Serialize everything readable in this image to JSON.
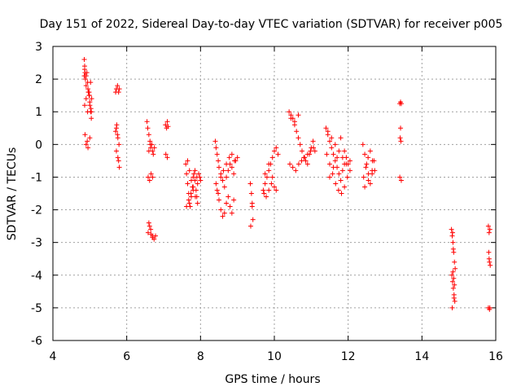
{
  "chart_data": {
    "type": "scatter",
    "title": "Day 151 of 2022, Sidereal Day-to-day VTEC variation (SDTVAR) for receiver p005",
    "xlabel": "GPS time / hours",
    "ylabel": "SDTVAR / TECUs",
    "xlim": [
      4,
      16
    ],
    "ylim": [
      -6,
      3
    ],
    "xticks": [
      "4",
      "6",
      "8",
      "10",
      "12",
      "14",
      "16"
    ],
    "yticks": [
      "-6",
      "-5",
      "-4",
      "-3",
      "-2",
      "-1",
      "0",
      "1",
      "2",
      "3"
    ],
    "grid": true,
    "marker": "+",
    "color": "#ff0000",
    "series": [
      {
        "name": "SDTVAR",
        "x": [
          4.85,
          4.86,
          4.87,
          4.88,
          4.9,
          4.92,
          4.94,
          4.96,
          4.98,
          5.0,
          5.02,
          5.04,
          5.05,
          4.86,
          4.9,
          4.94,
          4.98,
          5.02,
          4.85,
          4.9,
          4.95,
          5.0,
          4.87,
          4.93,
          4.99,
          5.03,
          4.86,
          4.9,
          4.95,
          5.0,
          5.04,
          5.7,
          5.72,
          5.75,
          5.78,
          5.8,
          5.7,
          5.73,
          5.76,
          5.79,
          5.72,
          5.76,
          5.8,
          5.75,
          5.72,
          5.78,
          6.55,
          6.57,
          6.6,
          6.63,
          6.65,
          6.68,
          6.7,
          6.72,
          6.75,
          6.58,
          6.62,
          6.66,
          6.7,
          6.6,
          6.65,
          6.7,
          6.58,
          6.62,
          6.66,
          6.7,
          6.74,
          6.78,
          6.6,
          6.64,
          7.05,
          7.08,
          7.1,
          7.12,
          7.06,
          7.1,
          7.6,
          7.62,
          7.65,
          7.68,
          7.7,
          7.72,
          7.75,
          7.78,
          7.8,
          7.82,
          7.85,
          7.88,
          7.9,
          7.92,
          7.95,
          7.98,
          8.0,
          7.65,
          7.7,
          7.75,
          7.8,
          7.85,
          7.9,
          7.62,
          7.68,
          7.74,
          7.8,
          7.86,
          7.92,
          8.4,
          8.42,
          8.45,
          8.48,
          8.5,
          8.55,
          8.6,
          8.65,
          8.7,
          8.75,
          8.8,
          8.85,
          8.9,
          8.95,
          9.0,
          8.45,
          8.5,
          8.55,
          8.6,
          8.65,
          8.7,
          8.75,
          8.8,
          8.85,
          8.9,
          8.42,
          8.48,
          8.55,
          8.62,
          8.7,
          8.78,
          8.85,
          8.92,
          9.35,
          9.38,
          9.4,
          9.42,
          9.36,
          9.4,
          9.7,
          9.75,
          9.8,
          9.85,
          9.9,
          9.95,
          10.0,
          10.05,
          10.1,
          9.72,
          9.78,
          9.85,
          9.92,
          10.0,
          9.75,
          9.85,
          9.95,
          10.05,
          10.4,
          10.45,
          10.5,
          10.55,
          10.6,
          10.65,
          10.7,
          10.75,
          10.8,
          10.85,
          10.9,
          10.95,
          11.0,
          11.05,
          11.1,
          10.42,
          10.5,
          10.58,
          10.66,
          10.74,
          10.82,
          10.9,
          10.98,
          11.06,
          10.45,
          10.55,
          10.65,
          11.4,
          11.45,
          11.5,
          11.55,
          11.6,
          11.65,
          11.7,
          11.75,
          11.8,
          11.85,
          11.9,
          11.95,
          12.0,
          12.05,
          11.42,
          11.5,
          11.58,
          11.66,
          11.74,
          11.82,
          11.9,
          11.98,
          11.45,
          11.55,
          11.65,
          11.75,
          11.85,
          11.95,
          12.05,
          11.5,
          11.6,
          11.7,
          11.8,
          11.9,
          12.4,
          12.45,
          12.5,
          12.55,
          12.6,
          12.65,
          12.7,
          12.42,
          12.48,
          12.54,
          12.6,
          12.66,
          12.72,
          12.45,
          12.55,
          12.65,
          13.4,
          13.42,
          13.44,
          13.41,
          13.43,
          13.42,
          13.4,
          13.44,
          14.8,
          14.82,
          14.84,
          14.86,
          14.88,
          14.9,
          14.81,
          14.83,
          14.85,
          14.87,
          14.89,
          14.82,
          14.84,
          14.86,
          14.88,
          14.85,
          14.83,
          14.87,
          15.8,
          15.82,
          15.84,
          15.81,
          15.83,
          15.85,
          15.82,
          15.84,
          15.8,
          15.83
        ],
        "y": [
          2.6,
          2.4,
          2.2,
          2.0,
          1.8,
          2.2,
          1.9,
          1.6,
          1.5,
          1.2,
          1.0,
          0.8,
          1.4,
          1.2,
          1.4,
          1.0,
          1.6,
          1.9,
          2.1,
          0.0,
          -0.1,
          0.2,
          0.3,
          0.1,
          1.5,
          1.1,
          2.3,
          2.1,
          1.7,
          1.3,
          1.0,
          1.6,
          1.7,
          1.8,
          1.6,
          1.7,
          0.4,
          0.6,
          0.2,
          0.0,
          -0.2,
          -0.4,
          -0.7,
          0.3,
          0.5,
          -0.5,
          0.7,
          0.5,
          0.3,
          0.1,
          -0.1,
          0.0,
          -0.2,
          -0.3,
          -0.1,
          -1.0,
          -1.1,
          -0.9,
          -1.0,
          -2.4,
          -2.6,
          -2.8,
          -2.7,
          -2.5,
          -2.75,
          -2.85,
          -2.9,
          -2.8,
          -0.2,
          0.0,
          0.6,
          0.5,
          0.7,
          0.55,
          -0.3,
          -0.4,
          -0.6,
          -0.9,
          -1.2,
          -1.5,
          -1.8,
          -1.9,
          -1.6,
          -1.3,
          -1.0,
          -0.9,
          -1.1,
          -1.4,
          -1.6,
          -1.2,
          -0.9,
          -1.0,
          -1.1,
          -0.5,
          -0.8,
          -1.1,
          -1.4,
          -0.8,
          -1.0,
          -1.9,
          -1.7,
          -1.5,
          -1.3,
          -1.6,
          -1.8,
          0.1,
          -0.1,
          -0.3,
          -0.5,
          -0.7,
          -0.9,
          -1.1,
          -1.3,
          -1.0,
          -0.8,
          -0.6,
          -0.7,
          -0.9,
          -0.5,
          -0.4,
          -1.4,
          -1.7,
          -2.0,
          -2.2,
          -2.1,
          -1.8,
          -1.6,
          -1.9,
          -2.1,
          -1.7,
          -1.2,
          -1.5,
          -1.0,
          -0.8,
          -0.6,
          -0.4,
          -0.3,
          -0.5,
          -1.2,
          -1.5,
          -1.9,
          -2.3,
          -2.5,
          -1.8,
          -1.4,
          -1.2,
          -1.0,
          -0.8,
          -0.6,
          -0.4,
          -0.2,
          -0.1,
          -0.3,
          -1.5,
          -1.6,
          -1.4,
          -1.2,
          -1.3,
          -0.9,
          -0.6,
          -1.0,
          -1.4,
          1.0,
          0.9,
          0.8,
          0.6,
          0.4,
          0.2,
          0.0,
          -0.2,
          -0.4,
          -0.5,
          -0.6,
          -0.3,
          -0.1,
          0.1,
          -0.2,
          -0.6,
          -0.7,
          -0.8,
          -0.6,
          -0.5,
          -0.4,
          -0.3,
          -0.2,
          -0.1,
          0.8,
          0.7,
          0.9,
          0.5,
          0.3,
          0.1,
          -0.1,
          -0.3,
          -0.5,
          -0.7,
          -0.9,
          -1.1,
          -0.8,
          -0.6,
          -0.4,
          -0.6,
          -0.5,
          -0.3,
          -0.6,
          -0.9,
          -1.2,
          -1.4,
          -1.5,
          -1.3,
          -1.0,
          0.4,
          0.2,
          0.0,
          -0.2,
          -0.4,
          -0.6,
          -0.8,
          -1.0,
          -0.7,
          -0.4,
          0.2,
          -0.2,
          0.0,
          -0.3,
          -0.6,
          -0.9,
          -1.2,
          -0.8,
          -0.5,
          -1.0,
          -0.7,
          -0.4,
          -0.2,
          -0.5,
          -0.8,
          -1.3,
          -1.1,
          -0.9,
          1.25,
          1.3,
          1.25,
          0.2,
          0.1,
          0.5,
          -1.0,
          -1.1,
          -2.6,
          -2.8,
          -3.0,
          -3.3,
          -3.6,
          -3.8,
          -4.0,
          -4.2,
          -4.4,
          -4.6,
          -4.8,
          -5.0,
          -3.9,
          -4.1,
          -4.3,
          -3.2,
          -2.7,
          -4.7,
          -2.5,
          -2.7,
          -2.6,
          -3.3,
          -3.6,
          -3.7,
          -3.5,
          -5.0,
          -5.0,
          -5.05
        ]
      }
    ]
  }
}
